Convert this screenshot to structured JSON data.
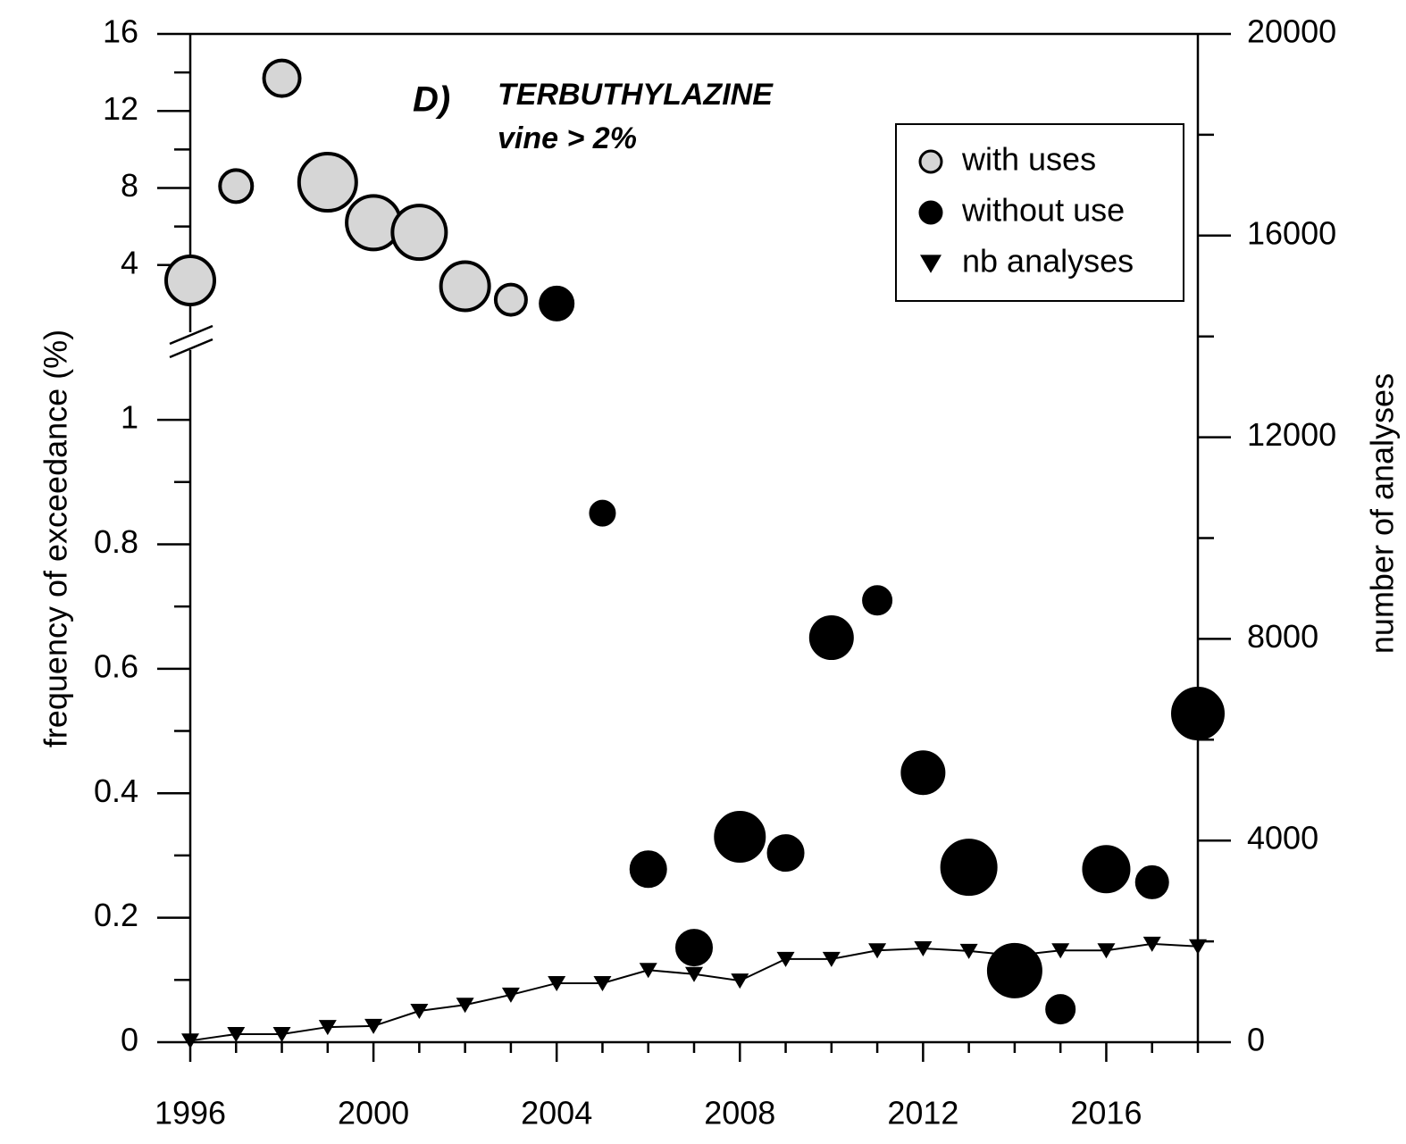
{
  "chart_data": {
    "type": "scatter",
    "panel_label": "D)",
    "title": "TERBUTHYLAZINE",
    "subtitle": "vine > 2%",
    "y_label": "frequency of exceedance (%)",
    "y2_label": "number of analyses",
    "x": [
      1996,
      1997,
      1998,
      1999,
      2000,
      2001,
      2002,
      2003,
      2004,
      2005,
      2006,
      2007,
      2008,
      2009,
      2010,
      2011,
      2012,
      2013,
      2014,
      2015,
      2016,
      2017,
      2018
    ],
    "xlim": [
      1996,
      2018
    ],
    "xticks": [
      1996,
      2000,
      2004,
      2008,
      2012,
      2016
    ],
    "xminor": [
      1997,
      1998,
      1999,
      2001,
      2002,
      2003,
      2005,
      2006,
      2007,
      2009,
      2010,
      2011,
      2013,
      2014,
      2015,
      2017,
      2018
    ],
    "ylim": [
      0,
      1.125
    ],
    "yticks": [
      0,
      0.2,
      0.4,
      0.6,
      0.8,
      1
    ],
    "yminor": [
      0.1,
      0.3,
      0.5,
      0.7,
      0.9
    ],
    "ylim_upper": [
      0,
      16
    ],
    "yticks_upper": [
      4,
      8,
      12,
      16
    ],
    "yminor_upper": [
      6,
      10,
      14
    ],
    "y2lim": [
      0,
      20000
    ],
    "y2ticks": [
      0,
      4000,
      8000,
      12000,
      16000,
      20000
    ],
    "y2minor": [
      2000,
      6000,
      10000,
      14000,
      18000
    ],
    "legend": "upper right",
    "series": [
      {
        "name": "with uses",
        "color": "#d6d6d6",
        "marker": "circle",
        "values": [
          3.2,
          8.1,
          13.7,
          8.3,
          6.2,
          5.7,
          2.9,
          2.2,
          null,
          null,
          null,
          null,
          null,
          null,
          null,
          null,
          null,
          null,
          null,
          null,
          null,
          null,
          null
        ],
        "sizes": [
          27,
          18,
          20,
          32,
          30,
          30,
          27,
          17,
          null,
          null,
          null,
          null,
          null,
          null,
          null,
          null,
          null,
          null,
          null,
          null,
          null,
          null,
          null
        ]
      },
      {
        "name": "without use",
        "color": "#000000",
        "marker": "circle",
        "values": [
          null,
          null,
          null,
          null,
          null,
          null,
          null,
          null,
          2.0,
          0.85,
          0.278,
          0.152,
          0.33,
          0.304,
          0.65,
          0.71,
          0.433,
          0.281,
          0.115,
          0.053,
          0.278,
          0.257,
          0.528
        ],
        "sizes": [
          null,
          null,
          null,
          null,
          null,
          null,
          null,
          null,
          18,
          13,
          19,
          19,
          27,
          19,
          23,
          15,
          23,
          30,
          29,
          15,
          25,
          17,
          28
        ]
      },
      {
        "name": "nb analyses",
        "color": "#000000",
        "marker": "triangle",
        "axis": "y2",
        "values": [
          30,
          160,
          160,
          300,
          320,
          620,
          740,
          940,
          1170,
          1170,
          1430,
          1350,
          1220,
          1650,
          1650,
          1820,
          1860,
          1810,
          1720,
          1820,
          1820,
          1950,
          1900
        ]
      }
    ]
  }
}
